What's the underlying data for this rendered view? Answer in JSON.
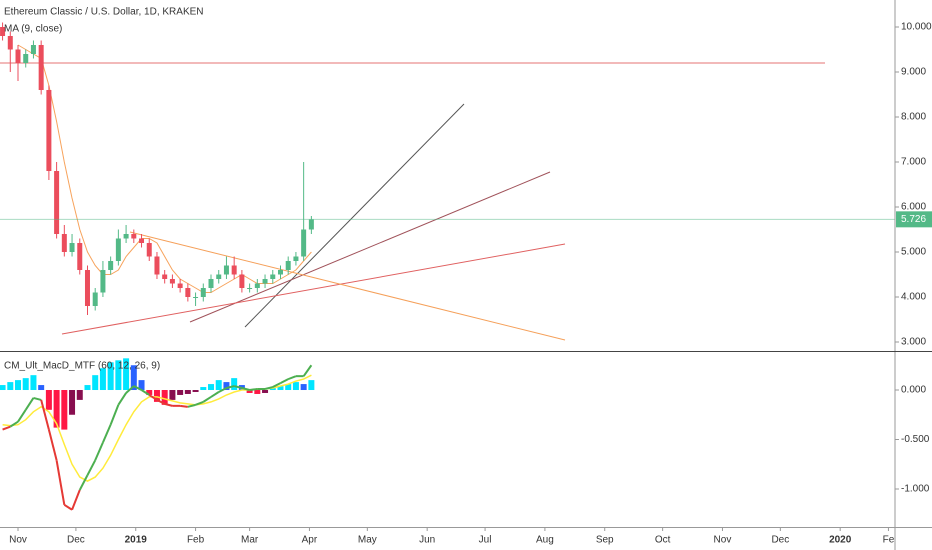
{
  "chart_data": [
    {
      "type": "candlestick",
      "title": "Ethereum Classic / U.S. Dollar, 1D, KRAKEN",
      "x": [
        -8,
        -4,
        0,
        4,
        8,
        12,
        16,
        20,
        24,
        28,
        32,
        36,
        40,
        44,
        48,
        52,
        56,
        60,
        64,
        68,
        72,
        76,
        80,
        84,
        88,
        92,
        96,
        100,
        104,
        108,
        112,
        116,
        120,
        124,
        128,
        132,
        136,
        140,
        144,
        148,
        152
      ],
      "open": [
        10.0,
        9.8,
        9.5,
        9.2,
        9.4,
        9.6,
        8.6,
        6.8,
        5.4,
        5.0,
        5.2,
        4.6,
        3.8,
        4.1,
        4.6,
        4.8,
        5.3,
        5.4,
        5.3,
        5.2,
        4.9,
        4.5,
        4.4,
        4.3,
        4.2,
        4.0,
        4.0,
        4.2,
        4.4,
        4.5,
        4.7,
        4.5,
        4.2,
        4.2,
        4.3,
        4.4,
        4.5,
        4.6,
        4.8,
        4.9,
        5.5
      ],
      "high": [
        10.1,
        9.9,
        9.6,
        9.5,
        9.7,
        9.7,
        8.7,
        7.0,
        5.6,
        5.4,
        5.3,
        4.7,
        4.2,
        4.8,
        4.9,
        5.5,
        5.6,
        5.5,
        5.4,
        5.3,
        5.0,
        4.6,
        4.5,
        4.4,
        4.3,
        4.1,
        4.3,
        4.5,
        4.6,
        4.9,
        4.9,
        4.6,
        4.3,
        4.4,
        4.5,
        4.6,
        4.7,
        4.9,
        5.0,
        7.0,
        5.8
      ],
      "low": [
        9.7,
        9.0,
        8.8,
        9.1,
        9.3,
        8.5,
        6.6,
        5.3,
        4.9,
        4.9,
        4.5,
        3.6,
        3.7,
        4.0,
        4.5,
        4.7,
        5.2,
        5.2,
        5.1,
        4.8,
        4.4,
        4.3,
        4.2,
        4.1,
        3.9,
        3.8,
        3.9,
        4.1,
        4.3,
        4.4,
        4.4,
        4.1,
        4.1,
        4.1,
        4.2,
        4.3,
        4.4,
        4.5,
        4.7,
        4.8,
        5.4
      ],
      "close": [
        9.8,
        9.5,
        9.2,
        9.4,
        9.6,
        8.6,
        6.8,
        5.4,
        5.0,
        5.2,
        4.6,
        3.8,
        4.1,
        4.6,
        4.8,
        5.3,
        5.4,
        5.3,
        5.2,
        4.9,
        4.5,
        4.4,
        4.3,
        4.2,
        4.0,
        4.0,
        4.2,
        4.4,
        4.5,
        4.7,
        4.5,
        4.2,
        4.2,
        4.3,
        4.4,
        4.5,
        4.6,
        4.8,
        4.9,
        5.5,
        5.726
      ],
      "up_color": "#53b987",
      "down_color": "#eb4d5c",
      "ma": {
        "name": "MA (9, close)",
        "color": "#f7a35c",
        "values": [
          null,
          null,
          9.6,
          9.5,
          9.4,
          9.3,
          8.7,
          7.9,
          7.0,
          6.2,
          5.5,
          5.0,
          4.7,
          4.5,
          4.5,
          4.6,
          4.9,
          5.1,
          5.3,
          5.3,
          5.2,
          4.9,
          4.6,
          4.4,
          4.3,
          4.2,
          4.1,
          4.1,
          4.2,
          4.3,
          4.4,
          4.5,
          4.4,
          4.3,
          4.3,
          4.3,
          4.4,
          4.5,
          4.6,
          4.8,
          5.0
        ]
      },
      "xlim": [
        -9.33,
        454.4
      ],
      "ylim": [
        2.8,
        10.6
      ],
      "yticks": [
        {
          "value": 10,
          "label": "10.000"
        },
        {
          "value": 9,
          "label": "9.000"
        },
        {
          "value": 8,
          "label": "8.000"
        },
        {
          "value": 7,
          "label": "7.000"
        },
        {
          "value": 6,
          "label": "6.000"
        },
        {
          "value": 5,
          "label": "5.000"
        },
        {
          "value": 4,
          "label": "4.000"
        },
        {
          "value": 3,
          "label": "3.000"
        }
      ]
    },
    {
      "type": "macd",
      "title": "CM_Ult_MacD_MTF (60, 12, 26, 9)",
      "x": [
        -8,
        -4,
        0,
        4,
        8,
        12,
        16,
        20,
        24,
        28,
        32,
        36,
        40,
        44,
        48,
        52,
        56,
        60,
        64,
        68,
        72,
        76,
        80,
        84,
        88,
        92,
        96,
        100,
        104,
        108,
        112,
        116,
        120,
        124,
        128,
        132,
        136,
        140,
        144,
        148,
        152
      ],
      "macd": [
        -0.4,
        -0.37,
        -0.32,
        -0.2,
        -0.08,
        -0.1,
        -0.4,
        -0.71,
        -1.16,
        -1.21,
        -1.01,
        -0.86,
        -0.71,
        -0.53,
        -0.35,
        -0.15,
        -0.03,
        0.04,
        0.0,
        -0.05,
        -0.1,
        -0.14,
        -0.16,
        -0.16,
        -0.17,
        -0.15,
        -0.12,
        -0.07,
        -0.02,
        0.02,
        0.04,
        0.02,
        0.0,
        0.01,
        0.01,
        0.03,
        0.07,
        0.11,
        0.14,
        0.14,
        0.25
      ],
      "signal": [
        -0.35,
        -0.36,
        -0.35,
        -0.3,
        -0.22,
        -0.17,
        -0.22,
        -0.34,
        -0.55,
        -0.75,
        -0.88,
        -0.92,
        -0.88,
        -0.79,
        -0.66,
        -0.5,
        -0.35,
        -0.22,
        -0.12,
        -0.07,
        -0.07,
        -0.09,
        -0.11,
        -0.13,
        -0.14,
        -0.15,
        -0.14,
        -0.12,
        -0.09,
        -0.05,
        -0.02,
        0.0,
        0.0,
        0.01,
        0.01,
        0.02,
        0.04,
        0.06,
        0.09,
        0.11,
        0.15
      ],
      "histogram": [
        0.05,
        0.08,
        0.1,
        0.12,
        0.15,
        0.05,
        -0.2,
        -0.38,
        -0.4,
        -0.25,
        -0.1,
        0.05,
        0.15,
        0.22,
        0.28,
        0.3,
        0.32,
        0.25,
        0.1,
        -0.05,
        -0.12,
        -0.15,
        -0.1,
        -0.05,
        -0.04,
        -0.02,
        0.03,
        0.06,
        0.1,
        0.08,
        0.12,
        0.05,
        -0.03,
        -0.04,
        -0.03,
        0.02,
        0.04,
        0.06,
        0.08,
        0.06,
        0.1
      ],
      "macd_up_color": "#4caf50",
      "macd_down_color": "#e53935",
      "signal_color": "#ffeb3b",
      "histogram_colors": {
        "pos_rising": "#00e5ff",
        "pos_falling": "#2962ff",
        "neg_falling": "#ff1744",
        "neg_rising": "#880e4f"
      },
      "xlim": [
        -9.33,
        454.4
      ],
      "ylim": [
        -1.384,
        0.384
      ],
      "yticks": [
        {
          "value": 0,
          "label": "0.000"
        },
        {
          "value": -0.5,
          "label": "-0.500"
        },
        {
          "value": -1,
          "label": "-1.000"
        }
      ],
      "xticks": [
        {
          "value": 0,
          "label": "Nov"
        },
        {
          "value": 30,
          "label": "Dec"
        },
        {
          "value": 61,
          "label": "2019"
        },
        {
          "value": 92,
          "label": "Feb"
        },
        {
          "value": 120,
          "label": "Mar"
        },
        {
          "value": 151,
          "label": "Apr"
        },
        {
          "value": 181,
          "label": "May"
        },
        {
          "value": 212,
          "label": "Jun"
        },
        {
          "value": 242,
          "label": "Jul"
        },
        {
          "value": 273,
          "label": "Aug"
        },
        {
          "value": 304,
          "label": "Sep"
        },
        {
          "value": 334,
          "label": "Oct"
        },
        {
          "value": 365,
          "label": "Nov"
        },
        {
          "value": 395,
          "label": "Dec"
        },
        {
          "value": 426,
          "label": "2020"
        },
        {
          "value": 451,
          "label": "Fe"
        }
      ]
    }
  ]
}
